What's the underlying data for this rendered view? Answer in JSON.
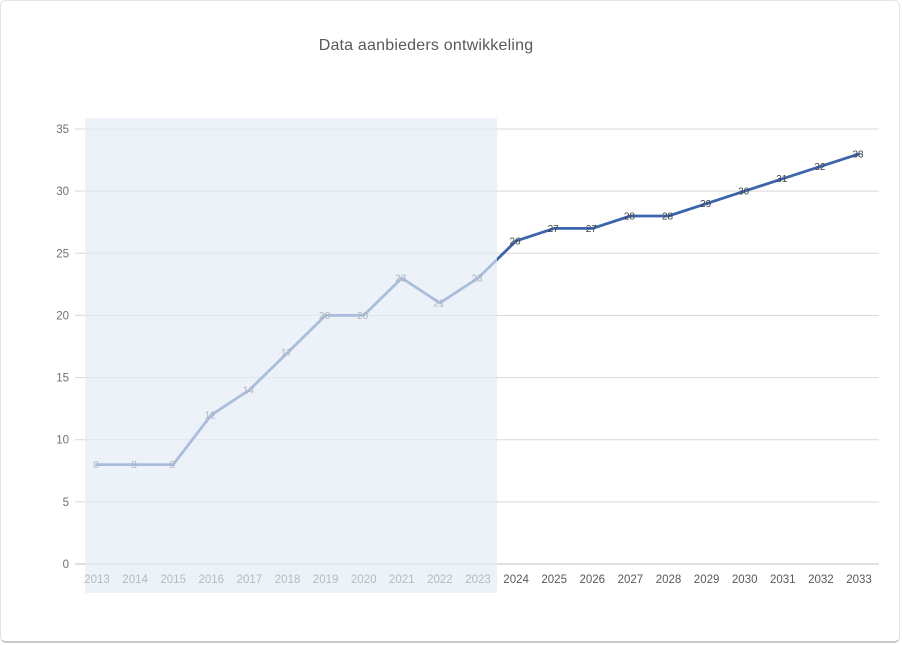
{
  "chart_data": {
    "type": "line",
    "title": "Data aanbieders ontwikkeling",
    "xlabel": "",
    "ylabel": "",
    "categories": [
      "2013",
      "2014",
      "2015",
      "2016",
      "2017",
      "2018",
      "2019",
      "2020",
      "2021",
      "2022",
      "2023",
      "2024",
      "2025",
      "2026",
      "2027",
      "2028",
      "2029",
      "2030",
      "2031",
      "2032",
      "2033"
    ],
    "series": [
      {
        "name": "Data aanbieders",
        "values": [
          8,
          8,
          8,
          12,
          14,
          17,
          20,
          20,
          23,
          21,
          23,
          26,
          27,
          27,
          28,
          28,
          29,
          30,
          31,
          32,
          33
        ]
      }
    ],
    "data_labels_shown": true,
    "ylim": [
      0,
      35
    ],
    "y_ticks": [
      0,
      5,
      10,
      15,
      20,
      25,
      30,
      35
    ],
    "grid": "horizontal",
    "legend_position": "none",
    "shaded_region": {
      "start_category": "2013",
      "end_category": "2023",
      "note": "historical period highlighted with translucent light-blue overlay; line and labels appear washed out inside it"
    },
    "colors": {
      "line": "#3b64ad",
      "line_in_shaded_region_appearance": "#a9bddd",
      "overlay_fill": "#e4ebf6",
      "overlay_opacity": 0.66,
      "gridline": "#d9d9d9",
      "axis_line": "#c0c0c0",
      "title_text": "#595959",
      "x_tick_text": "#595959",
      "y_tick_text": "#6e7276",
      "data_label_text": "#404448",
      "background": "#ffffff"
    }
  }
}
